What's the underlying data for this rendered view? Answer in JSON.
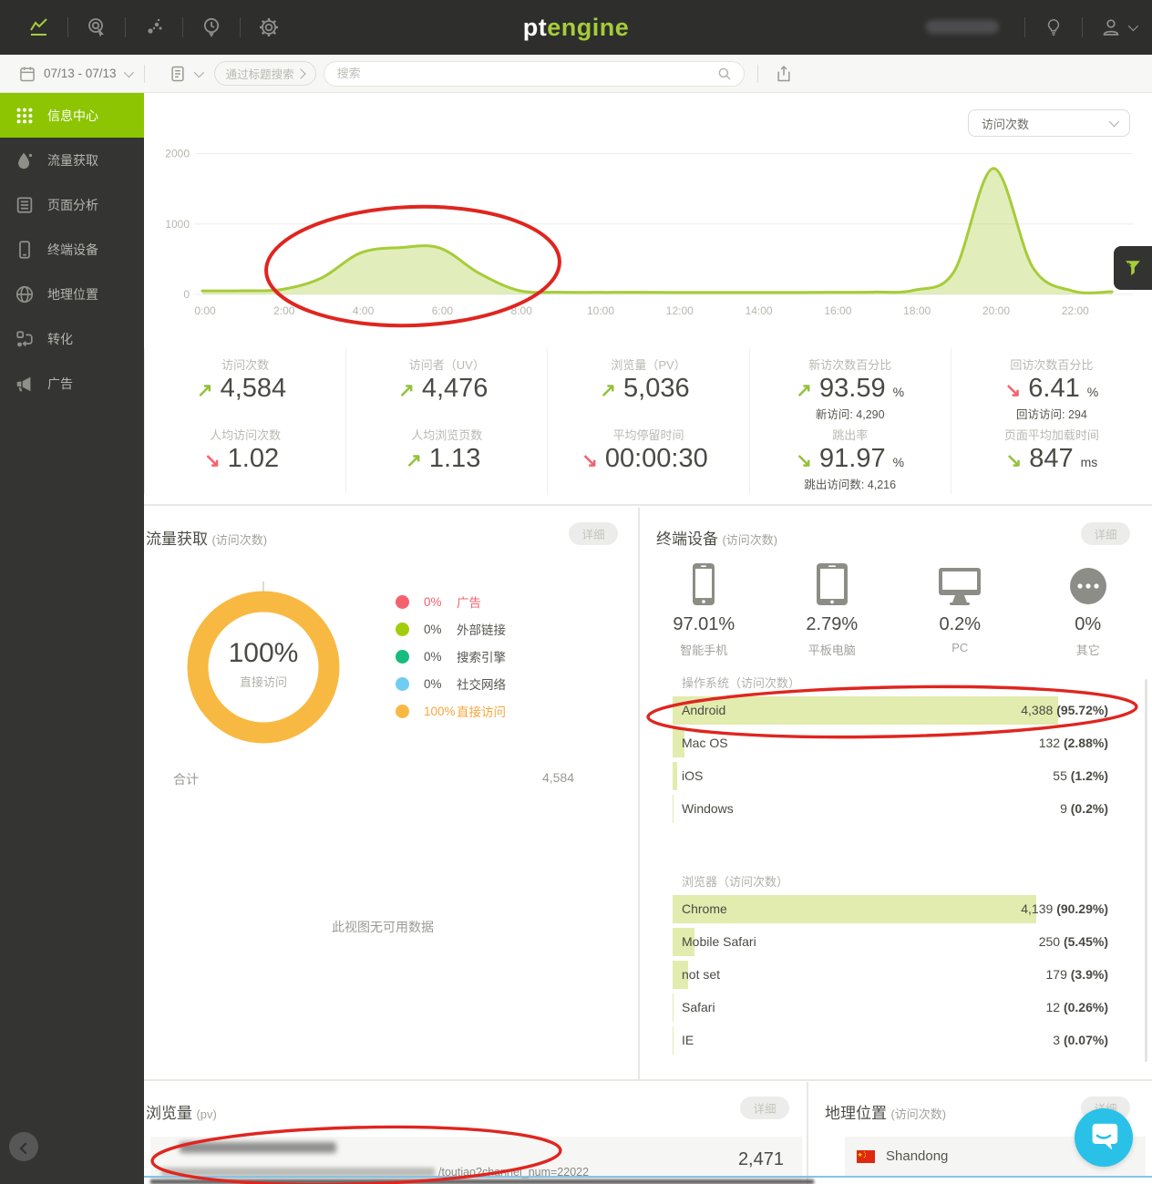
{
  "header": {
    "logo_pt": "pt",
    "logo_engine": "engine",
    "nav_icons": [
      "trend-chart-icon",
      "heatmap-click-icon",
      "event-dots-icon",
      "realtime-clock-icon",
      "settings-gear-icon"
    ],
    "right_icons": [
      "idea-bulb-icon",
      "account-person-icon"
    ],
    "account_name_redacted": true
  },
  "toolbar": {
    "date_range": "07/13 - 07/13",
    "report_icon": "document-icon",
    "title_search_label": "通过标题搜索",
    "search_placeholder": "搜索",
    "share_icon": "export-share-icon"
  },
  "sidebar": {
    "items": [
      {
        "label": "信息中心",
        "icon": "grid-icon",
        "active": true
      },
      {
        "label": "流量获取",
        "icon": "droplet-icon",
        "active": false
      },
      {
        "label": "页面分析",
        "icon": "pages-icon",
        "active": false
      },
      {
        "label": "终端设备",
        "icon": "device-icon",
        "active": false
      },
      {
        "label": "地理位置",
        "icon": "globe-icon",
        "active": false
      },
      {
        "label": "转化",
        "icon": "conversion-icon",
        "active": false
      },
      {
        "label": "广告",
        "icon": "megaphone-icon",
        "active": false
      }
    ]
  },
  "chart_data": {
    "type": "area",
    "metric_selector": "访问次数",
    "x_hours": [
      "0:00",
      "1:00",
      "2:00",
      "3:00",
      "4:00",
      "5:00",
      "6:00",
      "7:00",
      "8:00",
      "9:00",
      "10:00",
      "11:00",
      "12:00",
      "13:00",
      "14:00",
      "15:00",
      "16:00",
      "17:00",
      "18:00",
      "19:00",
      "20:00",
      "21:00",
      "22:00",
      "23:00"
    ],
    "values": [
      50,
      52,
      70,
      230,
      590,
      665,
      660,
      300,
      55,
      32,
      30,
      30,
      28,
      28,
      28,
      28,
      30,
      34,
      60,
      320,
      1790,
      380,
      50,
      38
    ],
    "xticks": [
      "0:00",
      "2:00",
      "4:00",
      "6:00",
      "8:00",
      "10:00",
      "12:00",
      "14:00",
      "16:00",
      "18:00",
      "20:00",
      "22:00"
    ],
    "yticks": [
      0,
      1000,
      2000
    ],
    "ylim": [
      0,
      2000
    ],
    "grid": true,
    "line_color": "#a6cc39",
    "fill_color": "rgba(168,204,60,0.34)"
  },
  "stats_columns": [
    {
      "top": {
        "label": "访问次数",
        "value": "4,584",
        "arrow": "↗",
        "arrow_color": "#94c13d"
      },
      "bottom": {
        "label": "人均访问次数",
        "value": "1.02",
        "arrow": "↘",
        "arrow_color": "#f4626d"
      }
    },
    {
      "top": {
        "label": "访问者（UV）",
        "value": "4,476",
        "arrow": "↗",
        "arrow_color": "#94c13d"
      },
      "bottom": {
        "label": "人均浏览页数",
        "value": "1.13",
        "arrow": "↗",
        "arrow_color": "#94c13d"
      }
    },
    {
      "top": {
        "label": "浏览量（PV）",
        "value": "5,036",
        "arrow": "↗",
        "arrow_color": "#94c13d"
      },
      "bottom": {
        "label": "平均停留时间",
        "value": "00:00:30",
        "arrow": "↘",
        "arrow_color": "#f4626d"
      }
    },
    {
      "top": {
        "label": "新访次数百分比",
        "value": "93.59",
        "suffix": "%",
        "arrow": "↗",
        "arrow_color": "#94c13d",
        "sub": "新访问: 4,290"
      },
      "bottom": {
        "label": "跳出率",
        "value": "91.97",
        "suffix": "%",
        "arrow": "↘",
        "arrow_color": "#94c13d",
        "sub": "跳出访问数: 4,216"
      }
    },
    {
      "top": {
        "label": "回访次数百分比",
        "value": "6.41",
        "suffix": "%",
        "arrow": "↘",
        "arrow_color": "#f4626d",
        "sub": "回访访问: 294"
      },
      "bottom": {
        "label": "页面平均加载时间",
        "value": "847",
        "suffix": "ms",
        "arrow": "↘",
        "arrow_color": "#94c13d"
      }
    }
  ],
  "traffic_panel": {
    "title": "流量获取",
    "subtitle": "(访问次数)",
    "detail_label": "详细",
    "donut": {
      "percent": "100%",
      "label": "直接访问",
      "color": "#f8b942"
    },
    "legend": [
      {
        "pct": "0%",
        "label": "广告",
        "color": "#f4626d",
        "pct_color": "#f4626d",
        "label_color": "#f4626d"
      },
      {
        "pct": "0%",
        "label": "外部链接",
        "color": "#a3cc0c",
        "pct_color": "#55554f",
        "label_color": "#55554f"
      },
      {
        "pct": "0%",
        "label": "搜索引擎",
        "color": "#17bd7e",
        "pct_color": "#55554f",
        "label_color": "#55554f"
      },
      {
        "pct": "0%",
        "label": "社交网络",
        "color": "#6fcdf2",
        "pct_color": "#55554f",
        "label_color": "#55554f"
      },
      {
        "pct": "100%",
        "label": "直接访问",
        "color": "#f8b942",
        "pct_color": "#f5a63b",
        "label_color": "#f5a63b"
      }
    ],
    "total_label": "合计",
    "total_value": "4,584",
    "empty_text": "此视图无可用数据"
  },
  "devices_panel": {
    "title": "终端设备",
    "subtitle": "(访问次数)",
    "detail_label": "详细",
    "devices": [
      {
        "pct": "97.01%",
        "label": "智能手机",
        "icon": "smartphone-icon"
      },
      {
        "pct": "2.79%",
        "label": "平板电脑",
        "icon": "tablet-icon"
      },
      {
        "pct": "0.2%",
        "label": "PC",
        "icon": "desktop-icon"
      },
      {
        "pct": "0%",
        "label": "其它",
        "icon": "other-ellipsis-icon"
      }
    ],
    "os_section": {
      "title": "操作系统（访问次数）",
      "rows": [
        {
          "label": "Android",
          "value": "4,388",
          "pct": "(95.72%)",
          "bar": "95.72%"
        },
        {
          "label": "Mac OS",
          "value": "132",
          "pct": "(2.88%)",
          "bar": "2.88%"
        },
        {
          "label": "iOS",
          "value": "55",
          "pct": "(1.2%)",
          "bar": "1.2%"
        },
        {
          "label": "Windows",
          "value": "9",
          "pct": "(0.2%)",
          "bar": "0.2%"
        }
      ]
    },
    "browser_section": {
      "title": "浏览器（访问次数）",
      "rows": [
        {
          "label": "Chrome",
          "value": "4,139",
          "pct": "(90.29%)",
          "bar": "90.29%"
        },
        {
          "label": "Mobile Safari",
          "value": "250",
          "pct": "(5.45%)",
          "bar": "5.45%"
        },
        {
          "label": "not set",
          "value": "179",
          "pct": "(3.9%)",
          "bar": "3.9%"
        },
        {
          "label": "Safari",
          "value": "12",
          "pct": "(0.26%)",
          "bar": "0.26%"
        },
        {
          "label": "IE",
          "value": "3",
          "pct": "(0.07%)",
          "bar": "0.07%"
        }
      ]
    }
  },
  "pageviews_panel": {
    "title": "浏览量",
    "subtitle": "(pv)",
    "detail_label": "详细",
    "row": {
      "url_visible": "/toutiao?channel_num=22022",
      "value": "2,471",
      "title_redacted": true
    }
  },
  "geo_panel": {
    "title": "地理位置",
    "subtitle": "(访问次数)",
    "detail_label": "详细",
    "row": {
      "label": "Shandong",
      "flag": "china-flag-icon"
    }
  },
  "annotations": {
    "color": "#e0251f",
    "shapes": "hand-drawn red ellipses over chart bump, Android row, pageview url row"
  },
  "brand": {
    "green": "#8dc502",
    "logo_green": "#a5cd39",
    "chat_blue": "#29c1e8",
    "donut_orange": "#f8b942"
  }
}
